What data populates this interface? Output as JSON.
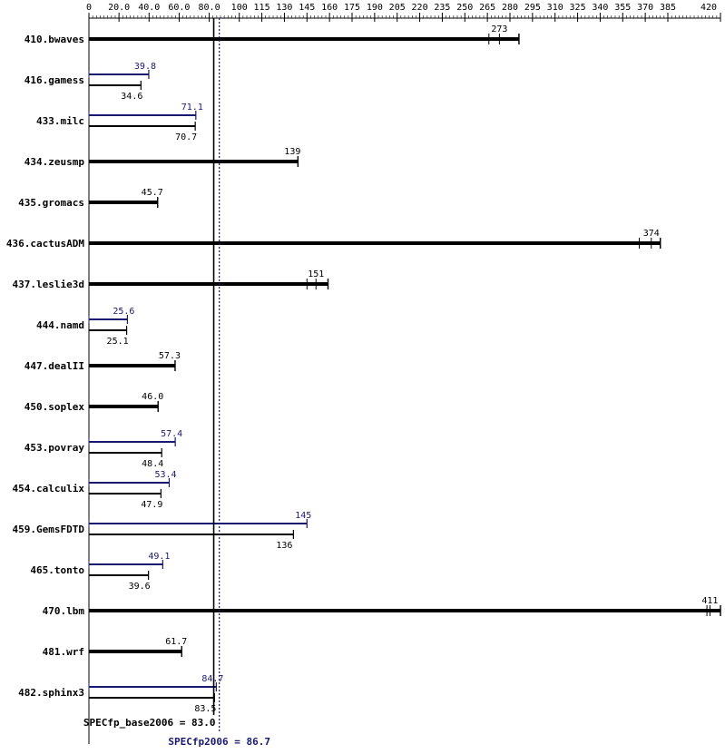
{
  "chart_data": {
    "type": "bar",
    "orientation": "horizontal",
    "xlim": [
      0,
      420
    ],
    "tick_labels": [
      "0",
      "20.0",
      "40.0",
      "60.0",
      "80.0",
      "100",
      "115",
      "130",
      "145",
      "160",
      "175",
      "190",
      "205",
      "220",
      "235",
      "250",
      "265",
      "280",
      "295",
      "310",
      "325",
      "340",
      "355",
      "370",
      "385",
      "420"
    ],
    "tick_values": [
      0,
      20,
      40,
      60,
      80,
      100,
      115,
      130,
      145,
      160,
      175,
      190,
      205,
      220,
      235,
      250,
      265,
      280,
      295,
      310,
      325,
      340,
      355,
      370,
      385,
      420
    ],
    "colors": {
      "base": "#000000",
      "peak": "#191970"
    },
    "benchmarks": [
      {
        "name": "410.bwaves",
        "base": 286,
        "base_label": "273",
        "base_runs": [
          266,
          273,
          286
        ]
      },
      {
        "name": "416.gamess",
        "peak": 39.8,
        "peak_label": "39.8",
        "base": 34.6,
        "base_label": "34.6"
      },
      {
        "name": "433.milc",
        "peak": 71.1,
        "peak_label": "71.1",
        "base": 70.7,
        "base_label": "70.7"
      },
      {
        "name": "434.zeusmp",
        "base": 139,
        "base_label": "139"
      },
      {
        "name": "435.gromacs",
        "base": 45.7,
        "base_label": "45.7"
      },
      {
        "name": "436.cactusADM",
        "base": 380,
        "base_label": "374",
        "base_runs": [
          366,
          374,
          380
        ]
      },
      {
        "name": "437.leslie3d",
        "base": 159,
        "base_label": "151",
        "base_runs": [
          145,
          151,
          159
        ]
      },
      {
        "name": "444.namd",
        "peak": 25.6,
        "peak_label": "25.6",
        "base": 25.1,
        "base_label": "25.1"
      },
      {
        "name": "447.dealII",
        "base": 57.3,
        "base_label": "57.3"
      },
      {
        "name": "450.soplex",
        "base": 46.0,
        "base_label": "46.0"
      },
      {
        "name": "453.povray",
        "peak": 57.4,
        "peak_label": "57.4",
        "base": 48.4,
        "base_label": "48.4"
      },
      {
        "name": "454.calculix",
        "peak": 53.4,
        "peak_label": "53.4",
        "base": 47.9,
        "base_label": "47.9"
      },
      {
        "name": "459.GemsFDTD",
        "peak": 145,
        "peak_label": "145",
        "base": 136,
        "base_label": "136"
      },
      {
        "name": "465.tonto",
        "peak": 49.1,
        "peak_label": "49.1",
        "base": 39.6,
        "base_label": "39.6"
      },
      {
        "name": "470.lbm",
        "base": 420,
        "base_label": "411",
        "base_runs": [
          411,
          413,
          420
        ]
      },
      {
        "name": "481.wrf",
        "base": 61.7,
        "base_label": "61.7"
      },
      {
        "name": "482.sphinx3",
        "peak": 84.7,
        "peak_label": "84.7",
        "base": 83.5,
        "base_label": "83.5"
      }
    ],
    "base_mean": {
      "label": "SPECfp_base2006 = 83.0",
      "value": 83.0
    },
    "peak_mean": {
      "label": "SPECfp2006 = 86.7",
      "value": 86.7
    }
  }
}
